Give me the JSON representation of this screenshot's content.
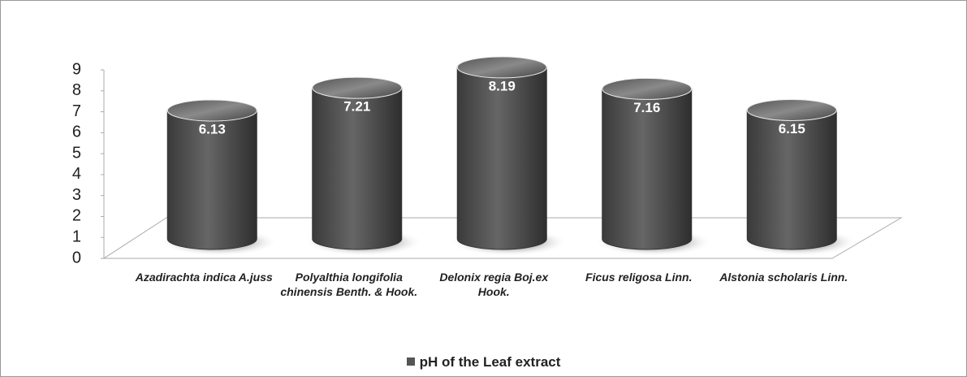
{
  "chart_data": {
    "type": "bar",
    "shape": "cylinder",
    "categories": [
      "Azadirachta indica A.juss",
      "Polyalthia longifolia chinensis Benth. & Hook.",
      "Delonix regia Boj.ex Hook.",
      "Ficus religosa Linn.",
      "Alstonia scholaris Linn."
    ],
    "series": [
      {
        "name": "pH of the Leaf extract",
        "color": "#4d4d4d",
        "values": [
          6.13,
          7.21,
          8.19,
          7.16,
          6.15
        ]
      }
    ],
    "ylim": [
      0,
      9
    ],
    "yticks": [
      0,
      1,
      2,
      3,
      4,
      5,
      6,
      7,
      8,
      9
    ],
    "legend": "bottom"
  }
}
